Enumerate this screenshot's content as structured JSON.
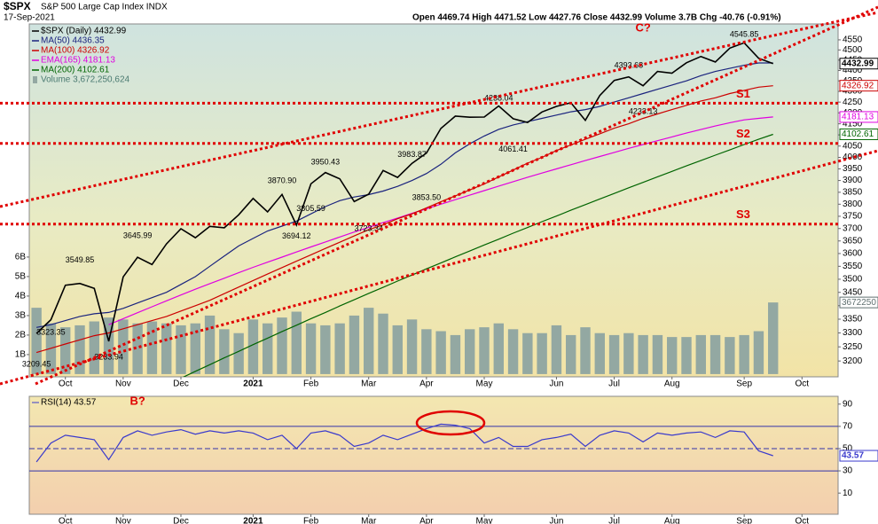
{
  "chart_data": [
    {
      "type": "line",
      "log": true,
      "title": "$SPX",
      "subtitle": "S&P 500 Large Cap Index  INDX",
      "date": "17-Sep-2021",
      "quote": "Open 4469.74  High 4471.52  Low 4427.76  Close 4432.99  Volume 3.7B  Chg -40.76 (-0.91%)",
      "categories": [
        null,
        null,
        "Oct",
        null,
        null,
        null,
        "Nov",
        null,
        null,
        null,
        "Dec",
        null,
        null,
        null,
        null,
        "2021",
        null,
        null,
        null,
        "Feb",
        null,
        null,
        null,
        "Mar",
        null,
        null,
        null,
        "Apr",
        null,
        null,
        null,
        "May",
        null,
        null,
        null,
        null,
        "Jun",
        null,
        null,
        null,
        "Jul",
        null,
        null,
        null,
        "Aug",
        null,
        null,
        null,
        null,
        "Sep",
        null,
        null,
        null,
        "Oct",
        null,
        null
      ],
      "series": [
        {
          "name": "Volume 3,672,250,624",
          "color": "#93a8a2",
          "type": "bar",
          "axis": "y2",
          "values": [
            3.4,
            2.6,
            2.4,
            2.5,
            2.7,
            2.9,
            2.8,
            2.6,
            2.7,
            2.6,
            2.5,
            2.6,
            3.0,
            2.3,
            2.1,
            2.8,
            2.6,
            2.9,
            3.2,
            2.6,
            2.5,
            2.6,
            3.0,
            3.4,
            3.1,
            2.5,
            2.8,
            2.3,
            2.2,
            2.0,
            2.3,
            2.4,
            2.6,
            2.3,
            2.1,
            2.1,
            2.5,
            2.0,
            2.4,
            2.1,
            2.0,
            2.1,
            2.0,
            2.0,
            1.9,
            1.9,
            2.0,
            2.0,
            1.9,
            2.0,
            2.2,
            3.67225,
            null,
            null,
            null,
            null
          ]
        },
        {
          "name": "MA(200) 4102.61",
          "color": "#006400",
          "values": [
            null,
            null,
            null,
            null,
            null,
            null,
            null,
            null,
            null,
            null,
            3140,
            3164,
            3187,
            3211,
            3234,
            3258,
            3281,
            3305,
            3328,
            3352,
            3375,
            3399,
            3422,
            3446,
            3469,
            3493,
            3516,
            3540,
            3563,
            3587,
            3610,
            3634,
            3657,
            3681,
            3704,
            3728,
            3751,
            3775,
            3798,
            3822,
            3845,
            3869,
            3892,
            3916,
            3939,
            3963,
            3986,
            4010,
            4033,
            4057,
            4080,
            4102.61,
            null,
            null,
            null,
            null
          ]
        },
        {
          "name": "EMA(165) 4181.13",
          "color": "#e000e0",
          "values": [
            null,
            null,
            null,
            null,
            null,
            3330,
            3352,
            3374,
            3396,
            3418,
            3440,
            3462,
            3483,
            3504,
            3525,
            3546,
            3566,
            3586,
            3606,
            3626,
            3646,
            3666,
            3686,
            3705,
            3724,
            3743,
            3762,
            3781,
            3800,
            3819,
            3838,
            3857,
            3876,
            3895,
            3914,
            3932,
            3950,
            3968,
            3986,
            4004,
            4022,
            4040,
            4057,
            4074,
            4091,
            4108,
            4124,
            4140,
            4155,
            4168,
            4175,
            4181.13,
            null,
            null,
            null,
            null
          ]
        },
        {
          "name": "MA(100) 4326.92",
          "color": "#cc0000",
          "values": [
            3230,
            3245,
            3260,
            3275,
            3290,
            3300,
            3315,
            3330,
            3345,
            3360,
            3380,
            3400,
            3420,
            3445,
            3470,
            3495,
            3520,
            3545,
            3570,
            3595,
            3620,
            3645,
            3670,
            3695,
            3715,
            3740,
            3760,
            3785,
            3810,
            3835,
            3860,
            3885,
            3915,
            3945,
            3975,
            4000,
            4030,
            4055,
            4080,
            4105,
            4130,
            4150,
            4175,
            4195,
            4215,
            4235,
            4255,
            4270,
            4290,
            4305,
            4320,
            4326.92,
            null,
            null,
            null,
            null
          ]
        },
        {
          "name": "MA(50) 4436.35",
          "color": "#1a237e",
          "values": [
            3320,
            3330,
            3345,
            3360,
            3370,
            3375,
            3390,
            3410,
            3430,
            3450,
            3480,
            3510,
            3550,
            3590,
            3630,
            3660,
            3690,
            3710,
            3730,
            3760,
            3790,
            3815,
            3830,
            3840,
            3855,
            3875,
            3900,
            3930,
            3970,
            4020,
            4060,
            4095,
            4125,
            4145,
            4160,
            4175,
            4190,
            4205,
            4215,
            4230,
            4250,
            4270,
            4290,
            4310,
            4330,
            4350,
            4375,
            4395,
            4410,
            4425,
            4436,
            4436.35,
            null,
            null,
            null,
            null
          ]
        },
        {
          "name": "$SPX (Daily) 4432.99",
          "color": "#000000",
          "values": [
            3298,
            3348,
            3477,
            3484,
            3465,
            3270,
            3509,
            3585,
            3557,
            3638,
            3699,
            3663,
            3709,
            3703,
            3756,
            3824,
            3768,
            3841,
            3714,
            3886,
            3934,
            3907,
            3811,
            3842,
            3943,
            3913,
            3974,
            4019,
            4129,
            4185,
            4180,
            4181,
            4232,
            4173,
            4156,
            4204,
            4230,
            4247,
            4166,
            4281,
            4352,
            4369,
            4327,
            4395,
            4387,
            4437,
            4468,
            4441,
            4509,
            4535,
            4459,
            4432.99,
            null,
            null,
            null,
            null
          ]
        }
      ],
      "ylim": [
        3145,
        4630
      ],
      "yticks": [
        3200,
        3250,
        3300,
        3350,
        3400,
        3450,
        3500,
        3550,
        3600,
        3650,
        3700,
        3750,
        3800,
        3850,
        3900,
        3950,
        4000,
        4050,
        4100,
        4150,
        4200,
        4250,
        4300,
        4350,
        4400,
        4450,
        4500,
        4550
      ],
      "y2lim": [
        -0.14,
        17.95
      ],
      "y2ticks": [
        {
          "value": 1,
          "label": "1B"
        },
        {
          "value": 2,
          "label": "2B"
        },
        {
          "value": 3,
          "label": "3B"
        },
        {
          "value": 4,
          "label": "4B"
        },
        {
          "value": 5,
          "label": "5B"
        },
        {
          "value": 6,
          "label": "6B"
        }
      ],
      "hline_color": "#e00000",
      "hlines": [
        {
          "value": 4245,
          "label": "S1"
        },
        {
          "value": 4062,
          "label": "S2"
        },
        {
          "value": 3718,
          "label": "S3"
        }
      ],
      "price_labels": {
        "x": [
          0,
          1,
          3,
          5,
          7,
          17,
          18,
          19,
          20,
          23,
          26,
          27,
          32,
          33,
          41,
          42,
          49
        ],
        "values": [
          3209.45,
          3323.35,
          3549.85,
          3233.94,
          3645.99,
          {
            "value": 3870.9,
            "label": "3870.90"
          },
          3694.12,
          3805.59,
          3950.43,
          3723.34,
          3983.87,
          {
            "value": 3853.5,
            "label": "3853.50"
          },
          4238.04,
          4061.41,
          4393.68,
          4233.13,
          4545.85
        ]
      },
      "wave_labels": [
        {
          "text": "C?",
          "x": 42,
          "y": 4607
        }
      ],
      "value_tags": [
        {
          "label": "4432.99",
          "value": 4432.99,
          "color": "#000000"
        },
        {
          "label": "4326.92",
          "value": 4326.92,
          "color": "#cc0000"
        },
        {
          "label": "4181.13",
          "value": 4181.13,
          "color": "#e000e0"
        },
        {
          "label": "4102.61",
          "value": 4102.61,
          "color": "#006400"
        },
        {
          "label": "3672250",
          "value": 3.67225,
          "axis": "y2",
          "color": "#607070"
        }
      ]
    },
    {
      "type": "line",
      "title": "RSI(14) 43.57",
      "series": [
        {
          "name": "RSI(14)",
          "color": "#3a3acc",
          "values": [
            38,
            55,
            62,
            60,
            58,
            40,
            60,
            66,
            62,
            65,
            67,
            63,
            66,
            64,
            66,
            64,
            58,
            62,
            50,
            64,
            66,
            62,
            52,
            55,
            62,
            58,
            63,
            68,
            72,
            71,
            68,
            55,
            60,
            52,
            52,
            58,
            60,
            63,
            52,
            62,
            66,
            64,
            56,
            64,
            62,
            64,
            65,
            60,
            66,
            65,
            48,
            43.57,
            null,
            null,
            null,
            null
          ]
        }
      ],
      "ylim": [
        -9,
        97
      ],
      "yticks": [
        90,
        70,
        50,
        30,
        10
      ],
      "hlines": [
        {
          "value": 70
        },
        {
          "value": 50,
          "style": "dashed"
        },
        {
          "value": 30
        }
      ],
      "wave_labels": [
        {
          "text": "B?",
          "x": 7,
          "y": 92
        }
      ],
      "value_tags": [
        {
          "label": "43.57",
          "value": 43.57,
          "color": "#3a3acc"
        }
      ]
    }
  ]
}
